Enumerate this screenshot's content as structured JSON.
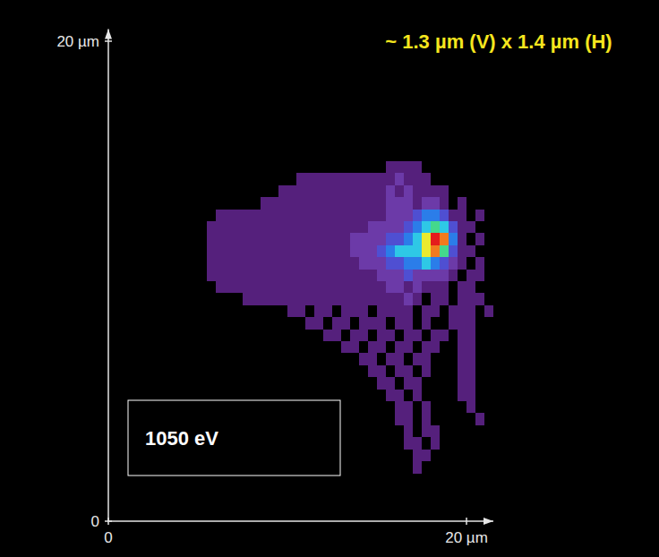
{
  "chart_data": {
    "type": "heatmap",
    "title": "~ 1.3 µm (V) x 1.4 µm (H)",
    "annotation": "1050 eV",
    "xlim": [
      0,
      21.5
    ],
    "ylim": [
      0,
      20.5
    ],
    "xticks": [
      0,
      {
        "value": 20,
        "label": "20 µm"
      }
    ],
    "yticks": [
      0,
      {
        "value": 20,
        "label": "20 µm"
      }
    ],
    "grid": false,
    "zlim": [
      0,
      9
    ],
    "x": [
      5.75,
      6.25,
      6.75,
      7.25,
      7.75,
      8.25,
      8.75,
      9.25,
      9.75,
      10.25,
      10.75,
      11.25,
      11.75,
      12.25,
      12.75,
      13.25,
      13.75,
      14.25,
      14.75,
      15.25,
      15.75,
      16.25,
      16.75,
      17.25,
      17.75,
      18.25,
      18.75,
      19.25,
      19.75,
      20.25,
      20.75,
      21.25
    ],
    "y": [
      14.75,
      14.25,
      13.75,
      13.25,
      12.75,
      12.25,
      11.75,
      11.25,
      10.75,
      10.25,
      9.75,
      9.25,
      8.75,
      8.25,
      7.75,
      7.25,
      6.75,
      6.25,
      5.75,
      5.25,
      4.75,
      4.25,
      3.75,
      3.25,
      2.75,
      2.25
    ],
    "cells": [
      [
        0,
        0,
        0,
        0,
        0,
        0,
        0,
        0,
        0,
        0,
        0,
        0,
        0,
        0,
        0,
        0,
        0,
        0,
        0,
        0,
        1,
        1,
        1,
        1,
        0,
        0,
        0,
        0,
        0,
        0,
        0,
        0
      ],
      [
        0,
        0,
        0,
        0,
        0,
        0,
        0,
        0,
        0,
        0,
        1,
        1,
        1,
        1,
        1,
        1,
        1,
        1,
        1,
        1,
        1,
        2,
        1,
        1,
        1,
        0,
        0,
        0,
        0,
        0,
        0,
        0
      ],
      [
        0,
        0,
        0,
        0,
        0,
        0,
        0,
        0,
        1,
        1,
        1,
        1,
        1,
        1,
        1,
        1,
        1,
        1,
        1,
        1,
        2,
        1,
        2,
        1,
        1,
        1,
        1,
        0,
        0,
        0,
        0,
        0
      ],
      [
        0,
        0,
        0,
        0,
        0,
        0,
        1,
        1,
        1,
        1,
        1,
        1,
        1,
        1,
        1,
        1,
        1,
        1,
        1,
        1,
        2,
        2,
        2,
        1,
        2,
        2,
        1,
        0,
        1,
        0,
        0,
        0
      ],
      [
        0,
        1,
        1,
        1,
        1,
        1,
        1,
        1,
        1,
        1,
        1,
        1,
        1,
        1,
        1,
        1,
        1,
        1,
        1,
        1,
        2,
        2,
        2,
        3,
        4,
        4,
        3,
        1,
        1,
        0,
        1,
        0
      ],
      [
        1,
        1,
        1,
        1,
        1,
        1,
        1,
        1,
        1,
        1,
        1,
        1,
        1,
        1,
        1,
        1,
        1,
        1,
        2,
        2,
        2,
        2,
        3,
        4,
        5,
        6,
        5,
        3,
        1,
        1,
        0,
        0
      ],
      [
        1,
        1,
        1,
        1,
        1,
        1,
        1,
        1,
        1,
        1,
        1,
        1,
        1,
        1,
        1,
        1,
        2,
        2,
        2,
        2,
        3,
        3,
        4,
        5,
        7,
        9,
        8,
        4,
        1,
        0,
        1,
        0
      ],
      [
        1,
        1,
        1,
        1,
        1,
        1,
        1,
        1,
        1,
        1,
        1,
        1,
        1,
        1,
        1,
        1,
        2,
        2,
        2,
        3,
        4,
        5,
        5,
        5,
        7,
        8,
        6,
        3,
        1,
        1,
        0,
        0
      ],
      [
        1,
        1,
        1,
        1,
        1,
        1,
        1,
        1,
        1,
        1,
        1,
        1,
        1,
        1,
        1,
        1,
        1,
        2,
        2,
        2,
        3,
        3,
        4,
        4,
        5,
        4,
        3,
        2,
        1,
        0,
        1,
        0
      ],
      [
        1,
        1,
        1,
        1,
        1,
        1,
        1,
        1,
        1,
        1,
        1,
        1,
        1,
        1,
        1,
        1,
        1,
        1,
        1,
        2,
        2,
        2,
        3,
        2,
        2,
        2,
        2,
        1,
        0,
        1,
        1,
        0
      ],
      [
        0,
        1,
        1,
        1,
        1,
        1,
        1,
        1,
        1,
        1,
        1,
        1,
        1,
        1,
        1,
        1,
        1,
        1,
        1,
        1,
        2,
        2,
        1,
        2,
        1,
        1,
        1,
        0,
        1,
        1,
        0,
        0
      ],
      [
        0,
        0,
        0,
        0,
        1,
        1,
        1,
        1,
        1,
        1,
        1,
        1,
        1,
        1,
        1,
        1,
        1,
        1,
        1,
        1,
        1,
        1,
        2,
        1,
        0,
        1,
        1,
        0,
        1,
        1,
        1,
        0
      ],
      [
        0,
        0,
        0,
        0,
        0,
        0,
        0,
        0,
        0,
        1,
        1,
        0,
        1,
        1,
        0,
        1,
        1,
        1,
        0,
        1,
        1,
        1,
        1,
        0,
        1,
        1,
        0,
        1,
        1,
        1,
        0,
        1
      ],
      [
        0,
        0,
        0,
        0,
        0,
        0,
        0,
        0,
        0,
        0,
        0,
        1,
        1,
        0,
        1,
        1,
        0,
        1,
        1,
        1,
        0,
        1,
        1,
        0,
        1,
        0,
        0,
        1,
        1,
        1,
        0,
        0
      ],
      [
        0,
        0,
        0,
        0,
        0,
        0,
        0,
        0,
        0,
        0,
        0,
        0,
        0,
        1,
        1,
        0,
        1,
        1,
        0,
        1,
        1,
        0,
        1,
        1,
        0,
        1,
        1,
        0,
        1,
        1,
        0,
        0
      ],
      [
        0,
        0,
        0,
        0,
        0,
        0,
        0,
        0,
        0,
        0,
        0,
        0,
        0,
        0,
        0,
        1,
        1,
        0,
        1,
        1,
        0,
        1,
        1,
        0,
        1,
        1,
        0,
        0,
        1,
        1,
        0,
        0
      ],
      [
        0,
        0,
        0,
        0,
        0,
        0,
        0,
        0,
        0,
        0,
        0,
        0,
        0,
        0,
        0,
        0,
        0,
        1,
        1,
        0,
        1,
        1,
        0,
        1,
        1,
        0,
        0,
        0,
        1,
        1,
        0,
        0
      ],
      [
        0,
        0,
        0,
        0,
        0,
        0,
        0,
        0,
        0,
        0,
        0,
        0,
        0,
        0,
        0,
        0,
        0,
        0,
        1,
        1,
        0,
        1,
        1,
        0,
        1,
        0,
        0,
        0,
        1,
        1,
        0,
        0
      ],
      [
        0,
        0,
        0,
        0,
        0,
        0,
        0,
        0,
        0,
        0,
        0,
        0,
        0,
        0,
        0,
        0,
        0,
        0,
        0,
        1,
        1,
        0,
        1,
        1,
        0,
        0,
        0,
        0,
        1,
        1,
        0,
        0
      ],
      [
        0,
        0,
        0,
        0,
        0,
        0,
        0,
        0,
        0,
        0,
        0,
        0,
        0,
        0,
        0,
        0,
        0,
        0,
        0,
        0,
        1,
        1,
        0,
        1,
        0,
        0,
        0,
        0,
        1,
        1,
        0,
        0
      ],
      [
        0,
        0,
        0,
        0,
        0,
        0,
        0,
        0,
        0,
        0,
        0,
        0,
        0,
        0,
        0,
        0,
        0,
        0,
        0,
        0,
        0,
        1,
        1,
        0,
        1,
        0,
        0,
        0,
        0,
        1,
        0,
        0
      ],
      [
        0,
        0,
        0,
        0,
        0,
        0,
        0,
        0,
        0,
        0,
        0,
        0,
        0,
        0,
        0,
        0,
        0,
        0,
        0,
        0,
        0,
        1,
        1,
        0,
        1,
        0,
        0,
        0,
        0,
        0,
        1,
        0
      ],
      [
        0,
        0,
        0,
        0,
        0,
        0,
        0,
        0,
        0,
        0,
        0,
        0,
        0,
        0,
        0,
        0,
        0,
        0,
        0,
        0,
        0,
        0,
        1,
        0,
        1,
        1,
        0,
        0,
        0,
        0,
        0,
        0
      ],
      [
        0,
        0,
        0,
        0,
        0,
        0,
        0,
        0,
        0,
        0,
        0,
        0,
        0,
        0,
        0,
        0,
        0,
        0,
        0,
        0,
        0,
        0,
        1,
        1,
        0,
        1,
        0,
        0,
        0,
        0,
        0,
        0
      ],
      [
        0,
        0,
        0,
        0,
        0,
        0,
        0,
        0,
        0,
        0,
        0,
        0,
        0,
        0,
        0,
        0,
        0,
        0,
        0,
        0,
        0,
        0,
        0,
        1,
        1,
        0,
        0,
        0,
        0,
        0,
        0,
        0
      ],
      [
        0,
        0,
        0,
        0,
        0,
        0,
        0,
        0,
        0,
        0,
        0,
        0,
        0,
        0,
        0,
        0,
        0,
        0,
        0,
        0,
        0,
        0,
        0,
        1,
        0,
        0,
        0,
        0,
        0,
        0,
        0,
        0
      ]
    ]
  }
}
